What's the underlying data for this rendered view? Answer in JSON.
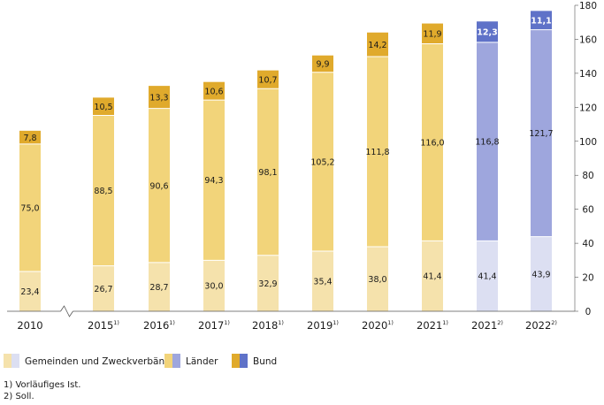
{
  "chart_data": {
    "type": "bar",
    "stacked": true,
    "categories": [
      "2010",
      "2015",
      "2016",
      "2017",
      "2018",
      "2019",
      "2020",
      "2021",
      "2021",
      "2022"
    ],
    "category_notes": [
      "",
      "1)",
      "1)",
      "1)",
      "1)",
      "1)",
      "1)",
      "1)",
      "2)",
      "2)"
    ],
    "series": [
      {
        "name": "Gemeinden und Zweckverbände",
        "values": [
          23.4,
          26.7,
          28.7,
          30.0,
          32.9,
          35.4,
          38.0,
          41.4,
          41.4,
          43.9
        ],
        "labels": [
          "23,4",
          "26,7",
          "28,7",
          "30,0",
          "32,9",
          "35,4",
          "38,0",
          "41,4",
          "41,4",
          "43,9"
        ]
      },
      {
        "name": "Länder",
        "values": [
          75.0,
          88.5,
          90.6,
          94.3,
          98.1,
          105.2,
          111.8,
          116.0,
          116.8,
          121.7
        ],
        "labels": [
          "75,0",
          "88,5",
          "90,6",
          "94,3",
          "98,1",
          "105,2",
          "111,8",
          "116,0",
          "116,8",
          "121,7"
        ]
      },
      {
        "name": "Bund",
        "values": [
          7.8,
          10.5,
          13.3,
          10.6,
          10.7,
          9.9,
          14.2,
          11.9,
          12.3,
          11.1
        ],
        "labels": [
          "7,8",
          "10,5",
          "13,3",
          "10,6",
          "10,7",
          "9,9",
          "14,2",
          "11,9",
          "12,3",
          "11,1"
        ]
      }
    ],
    "ylim": [
      0,
      180
    ],
    "yticks": [
      0,
      20,
      40,
      60,
      80,
      100,
      120,
      140,
      160,
      180
    ],
    "y_axis_side": "right",
    "axis_break_after": "2010",
    "grid": false,
    "legend_position": "bottom-left",
    "colors": {
      "actual": [
        "#f5e2ac",
        "#f2d47a",
        "#e0aa2c"
      ],
      "planned": [
        "#dcdff2",
        "#9ea6dd",
        "#5f72c8"
      ]
    }
  },
  "footnotes": [
    "1) Vorläufiges Ist.",
    "2) Soll."
  ]
}
